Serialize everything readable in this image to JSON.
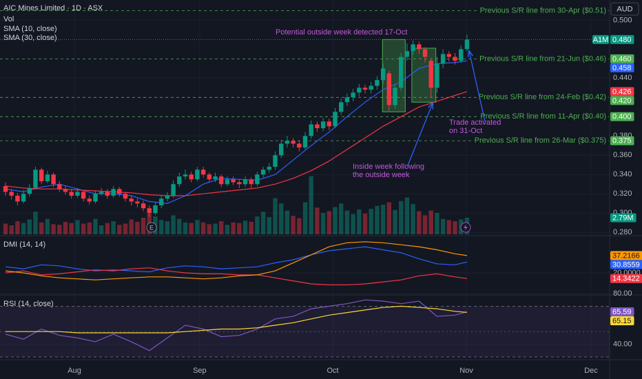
{
  "header": {
    "title": "AIC Mines Limited · 1D · ASX",
    "currency": "AUD"
  },
  "chart_data": [
    {
      "type": "candlestick",
      "xlim": [
        -0.92,
        100.8
      ],
      "xticks": [
        {
          "value": 11.5,
          "label": "Aug"
        },
        {
          "value": 32.4,
          "label": "Sep"
        },
        {
          "value": 54.6,
          "label": "Oct"
        },
        {
          "value": 76.9,
          "label": "Nov"
        },
        {
          "value": 97.7,
          "label": "Dec"
        }
      ],
      "ylim": [
        0.278,
        0.521
      ],
      "yticks": [
        {
          "value": 0.5,
          "label": "0.500"
        },
        {
          "value": 0.44,
          "label": "0.440"
        },
        {
          "value": 0.38,
          "label": "0.380"
        },
        {
          "value": 0.36,
          "label": "0.360"
        },
        {
          "value": 0.34,
          "label": "0.340"
        },
        {
          "value": 0.32,
          "label": "0.320"
        },
        {
          "value": 0.3,
          "label": "0.300"
        },
        {
          "value": 0.28,
          "label": "0.280"
        }
      ],
      "up_color": "#089981",
      "down_color": "#f23645",
      "open": [
        0.328,
        0.322,
        0.318,
        0.312,
        0.32,
        0.326,
        0.345,
        0.333,
        0.34,
        0.33,
        0.325,
        0.322,
        0.318,
        0.322,
        0.315,
        0.312,
        0.32,
        0.322,
        0.318,
        0.325,
        0.32,
        0.315,
        0.312,
        0.31,
        0.305,
        0.3,
        0.308,
        0.315,
        0.318,
        0.33,
        0.338,
        0.34,
        0.335,
        0.345,
        0.34,
        0.335,
        0.338,
        0.33,
        0.335,
        0.332,
        0.33,
        0.335,
        0.33,
        0.34,
        0.345,
        0.348,
        0.36,
        0.372,
        0.375,
        0.372,
        0.368,
        0.38,
        0.392,
        0.388,
        0.395,
        0.39,
        0.405,
        0.415,
        0.42,
        0.425,
        0.43,
        0.428,
        0.432,
        0.438,
        0.445,
        0.412,
        0.43,
        0.462,
        0.468,
        0.475,
        0.47,
        0.458,
        0.43,
        0.455,
        0.465,
        0.462,
        0.458,
        0.47
      ],
      "high": [
        0.332,
        0.325,
        0.321,
        0.324,
        0.33,
        0.348,
        0.347,
        0.344,
        0.342,
        0.333,
        0.328,
        0.325,
        0.326,
        0.324,
        0.318,
        0.323,
        0.326,
        0.325,
        0.328,
        0.327,
        0.322,
        0.318,
        0.315,
        0.313,
        0.308,
        0.312,
        0.318,
        0.322,
        0.334,
        0.342,
        0.345,
        0.343,
        0.348,
        0.348,
        0.342,
        0.342,
        0.34,
        0.338,
        0.338,
        0.335,
        0.338,
        0.337,
        0.343,
        0.348,
        0.352,
        0.364,
        0.376,
        0.38,
        0.378,
        0.375,
        0.384,
        0.396,
        0.395,
        0.399,
        0.398,
        0.409,
        0.419,
        0.424,
        0.429,
        0.434,
        0.433,
        0.436,
        0.442,
        0.455,
        0.448,
        0.434,
        0.466,
        0.476,
        0.479,
        0.478,
        0.472,
        0.46,
        0.462,
        0.47,
        0.468,
        0.466,
        0.474,
        0.485
      ],
      "low": [
        0.318,
        0.314,
        0.308,
        0.31,
        0.317,
        0.324,
        0.33,
        0.331,
        0.327,
        0.322,
        0.319,
        0.315,
        0.316,
        0.312,
        0.309,
        0.31,
        0.318,
        0.315,
        0.316,
        0.317,
        0.312,
        0.308,
        0.306,
        0.302,
        0.296,
        0.298,
        0.305,
        0.312,
        0.316,
        0.327,
        0.335,
        0.332,
        0.333,
        0.337,
        0.332,
        0.332,
        0.327,
        0.328,
        0.329,
        0.326,
        0.327,
        0.326,
        0.328,
        0.337,
        0.342,
        0.345,
        0.357,
        0.368,
        0.368,
        0.364,
        0.366,
        0.377,
        0.384,
        0.385,
        0.386,
        0.388,
        0.402,
        0.411,
        0.416,
        0.421,
        0.424,
        0.424,
        0.428,
        0.434,
        0.406,
        0.408,
        0.427,
        0.458,
        0.464,
        0.465,
        0.456,
        0.42,
        0.425,
        0.45,
        0.457,
        0.454,
        0.456,
        0.468
      ],
      "close": [
        0.322,
        0.318,
        0.312,
        0.32,
        0.326,
        0.345,
        0.333,
        0.34,
        0.33,
        0.325,
        0.322,
        0.318,
        0.322,
        0.315,
        0.312,
        0.32,
        0.322,
        0.318,
        0.325,
        0.32,
        0.315,
        0.312,
        0.31,
        0.305,
        0.3,
        0.308,
        0.315,
        0.318,
        0.33,
        0.338,
        0.34,
        0.335,
        0.345,
        0.34,
        0.335,
        0.338,
        0.33,
        0.335,
        0.332,
        0.33,
        0.335,
        0.33,
        0.34,
        0.345,
        0.348,
        0.36,
        0.372,
        0.375,
        0.372,
        0.368,
        0.38,
        0.392,
        0.388,
        0.395,
        0.39,
        0.405,
        0.415,
        0.42,
        0.425,
        0.43,
        0.428,
        0.432,
        0.438,
        0.45,
        0.412,
        0.43,
        0.462,
        0.468,
        0.475,
        0.47,
        0.462,
        0.43,
        0.455,
        0.465,
        0.462,
        0.458,
        0.47,
        0.48
      ],
      "last_price": {
        "symbol": "A1M",
        "value": 0.48,
        "label": "0.480"
      },
      "volume": {
        "name": "Vol",
        "ylim": [
          0,
          39500000
        ],
        "last_label": "2.79M",
        "values": [
          1800000,
          1500000,
          2200000,
          1900000,
          2500000,
          3800000,
          2000000,
          2600000,
          1700000,
          1600000,
          2100000,
          1900000,
          2400000,
          1800000,
          2000000,
          2600000,
          1500000,
          1900000,
          2200000,
          1600000,
          1800000,
          2500000,
          2100000,
          2800000,
          3500000,
          3000000,
          2400000,
          2200000,
          3200000,
          2600000,
          2000000,
          1900000,
          2400000,
          2000000,
          1700000,
          1800000,
          2200000,
          1600000,
          2000000,
          1900000,
          2300000,
          2100000,
          3000000,
          3800000,
          2900000,
          6100000,
          5200000,
          4000000,
          3100000,
          2700000,
          5400000,
          9800000,
          4500000,
          3600000,
          3900000,
          4600000,
          5200000,
          4000000,
          3400000,
          4200000,
          3500000,
          4300000,
          4800000,
          5000000,
          5400000,
          4100000,
          5600000,
          6200000,
          5100000,
          3900000,
          3200000,
          4000000,
          3600000,
          2600000,
          2400000,
          2200000,
          2500000,
          2790000
        ]
      },
      "series": [
        {
          "name": "SMA (10, close)",
          "color": "#2962ff",
          "x": [
            0,
            3,
            6,
            9,
            12,
            15,
            18,
            21,
            24,
            27,
            30,
            33,
            36,
            39,
            42,
            45,
            48,
            51,
            54,
            57,
            60,
            63,
            66,
            69,
            72,
            75,
            77
          ],
          "values": [
            0.325,
            0.322,
            0.327,
            0.33,
            0.325,
            0.32,
            0.32,
            0.318,
            0.312,
            0.31,
            0.318,
            0.33,
            0.336,
            0.335,
            0.334,
            0.34,
            0.355,
            0.37,
            0.384,
            0.4,
            0.415,
            0.428,
            0.436,
            0.45,
            0.455,
            0.456,
            0.458
          ]
        },
        {
          "name": "SMA (30, close)",
          "color": "#f23645",
          "x": [
            0,
            3,
            6,
            9,
            12,
            15,
            18,
            21,
            24,
            27,
            30,
            33,
            36,
            39,
            42,
            45,
            48,
            51,
            54,
            57,
            60,
            63,
            66,
            69,
            72,
            75,
            77
          ],
          "values": [
            0.328,
            0.326,
            0.325,
            0.325,
            0.324,
            0.323,
            0.322,
            0.321,
            0.319,
            0.318,
            0.318,
            0.32,
            0.322,
            0.324,
            0.326,
            0.33,
            0.336,
            0.344,
            0.354,
            0.366,
            0.378,
            0.39,
            0.4,
            0.41,
            0.416,
            0.422,
            0.426
          ]
        }
      ],
      "level_color": "#4caf50",
      "levels": [
        {
          "label": "Previous S/R line from 30-Apr ($0.51)",
          "value": 0.51
        },
        {
          "label": "Previous S/R line from 21-Jun ($0.46)",
          "value": 0.46,
          "tag": "0.460"
        },
        {
          "label": "Previous S/R line from 24-Feb ($0.42)",
          "value": 0.42,
          "tag": "0.420"
        },
        {
          "label": "Previous S/R line from 11-Apr ($0.40)",
          "value": 0.4,
          "tag": "0.400"
        },
        {
          "label": "Previous S/R line from 26-Mar ($0.375)",
          "value": 0.375,
          "tag": "0.375"
        }
      ],
      "box_color": "#4caf50",
      "boxes": [
        {
          "x": [
            62.9,
            66.7
          ],
          "y": [
            0.405,
            0.48
          ]
        },
        {
          "x": [
            67.8,
            71.8
          ],
          "y": [
            0.415,
            0.471
          ]
        }
      ],
      "annotation_color": "#c158dc",
      "annotations": [
        "Potential outside week detected 17-Oct",
        "Inside week following",
        "the outside week",
        "Trade activated",
        "on 31-Oct"
      ],
      "earnings_marker": "E"
    },
    {
      "type": "line",
      "title": "DMI (14, 14)",
      "xlim": [
        -0.92,
        100.8
      ],
      "ylim": [
        -2,
        55
      ],
      "yticks": [
        {
          "value": 20,
          "label": "20.0000"
        }
      ],
      "series": [
        {
          "color": "#2962ff",
          "x": [
            0,
            3,
            6,
            9,
            12,
            15,
            18,
            21,
            24,
            27,
            30,
            33,
            36,
            39,
            42,
            45,
            48,
            51,
            54,
            57,
            60,
            63,
            66,
            69,
            72,
            75,
            77
          ],
          "values": [
            26,
            24,
            28,
            27,
            24,
            22,
            23,
            22,
            21,
            25,
            27,
            26,
            24,
            25,
            26,
            30,
            33,
            38,
            42,
            44,
            46,
            43,
            40,
            34,
            29,
            28,
            30.8559
          ]
        },
        {
          "color": "#f23645",
          "x": [
            0,
            3,
            6,
            9,
            12,
            15,
            18,
            21,
            24,
            27,
            30,
            33,
            36,
            39,
            42,
            45,
            48,
            51,
            54,
            57,
            60,
            63,
            66,
            69,
            72,
            75,
            77
          ],
          "values": [
            20,
            22,
            18,
            19,
            21,
            23,
            22,
            24,
            25,
            22,
            20,
            19,
            19,
            18,
            18,
            15,
            12,
            9,
            8,
            8,
            9,
            11,
            13,
            17,
            19,
            16,
            14.3422
          ]
        },
        {
          "color": "#ff9800",
          "x": [
            0,
            3,
            6,
            9,
            12,
            15,
            18,
            21,
            24,
            27,
            30,
            33,
            36,
            39,
            42,
            45,
            48,
            51,
            54,
            57,
            60,
            63,
            66,
            69,
            72,
            75,
            77
          ],
          "values": [
            22,
            20,
            17,
            15,
            14,
            13,
            14,
            15,
            16,
            16,
            15,
            14,
            15,
            17,
            18,
            22,
            30,
            38,
            46,
            50,
            51,
            50,
            48,
            46,
            43,
            39,
            37.2166
          ]
        }
      ]
    },
    {
      "type": "line",
      "title": "RSI (14, close)",
      "xlim": [
        -0.92,
        100.8
      ],
      "ylim": [
        30,
        80
      ],
      "yticks": [
        {
          "value": 80,
          "label": "80.00"
        },
        {
          "value": 40,
          "label": "40.00"
        }
      ],
      "band": [
        30,
        70
      ],
      "midline": 50,
      "series": [
        {
          "color": "#7e57c2",
          "x": [
            0,
            3,
            6,
            9,
            12,
            15,
            18,
            21,
            24,
            27,
            30,
            33,
            36,
            39,
            42,
            45,
            48,
            51,
            54,
            57,
            60,
            63,
            66,
            69,
            72,
            75,
            77
          ],
          "values": [
            48,
            44,
            52,
            47,
            45,
            42,
            48,
            42,
            35,
            45,
            55,
            52,
            46,
            47,
            52,
            60,
            62,
            68,
            70,
            72,
            75,
            74,
            72,
            74,
            62,
            63,
            65.59
          ]
        },
        {
          "color": "#fdd835",
          "x": [
            0,
            3,
            6,
            9,
            12,
            15,
            18,
            21,
            24,
            27,
            30,
            33,
            36,
            39,
            42,
            45,
            48,
            51,
            54,
            57,
            60,
            63,
            66,
            69,
            72,
            75,
            77
          ],
          "values": [
            50,
            50,
            50,
            50,
            49,
            49,
            49,
            49,
            49,
            49,
            50,
            51,
            52,
            52,
            53,
            55,
            57,
            60,
            63,
            65,
            67,
            69,
            70,
            69,
            68,
            66,
            65.15
          ]
        }
      ]
    }
  ]
}
